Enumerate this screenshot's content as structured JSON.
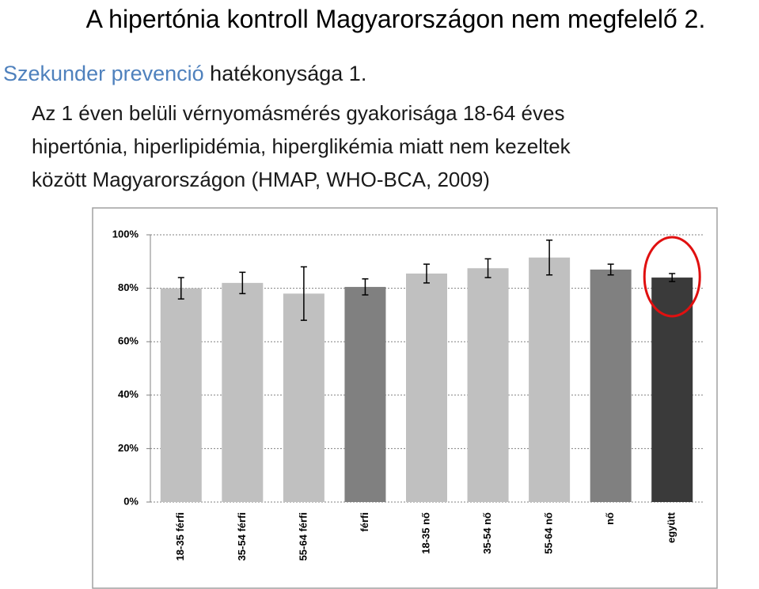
{
  "slide": {
    "title": "A hipertónia kontroll Magyarországon nem megfelelő 2.",
    "subtitle_highlight": "Szekunder prevenció",
    "subtitle_rest": "hatékonysága 1.",
    "body": [
      "Az 1 éven belüli vérnyomásmérés gyakorisága 18-64 éves",
      "hipertónia, hiperlipidémia, hiperglikémia miatt nem kezeltek",
      "között  Magyarországon (HMAP, WHO-BCA, 2009)"
    ]
  },
  "chart_data": {
    "type": "bar",
    "categories": [
      "18-35 férfi",
      "35-54 férfi",
      "55-64 férfi",
      "férfi",
      "18-35 nő",
      "35-54 nő",
      "55-64 nő",
      "nő",
      "együtt"
    ],
    "values": [
      80,
      82,
      78,
      80.5,
      85.5,
      87.5,
      91.5,
      87,
      84
    ],
    "errors": [
      4,
      4,
      10,
      3,
      3.5,
      3.5,
      6.5,
      2,
      1.5
    ],
    "colors": [
      "#c0c0c0",
      "#c0c0c0",
      "#c0c0c0",
      "#808080",
      "#c0c0c0",
      "#c0c0c0",
      "#c0c0c0",
      "#808080",
      "#3a3a3a"
    ],
    "ylim": [
      0,
      100
    ],
    "yticks": [
      {
        "value": 0,
        "label": "0%"
      },
      {
        "value": 20,
        "label": "20%"
      },
      {
        "value": 40,
        "label": "40%"
      },
      {
        "value": 60,
        "label": "60%"
      },
      {
        "value": 80,
        "label": "80%"
      },
      {
        "value": 100,
        "label": "100%"
      }
    ],
    "grid": true
  }
}
